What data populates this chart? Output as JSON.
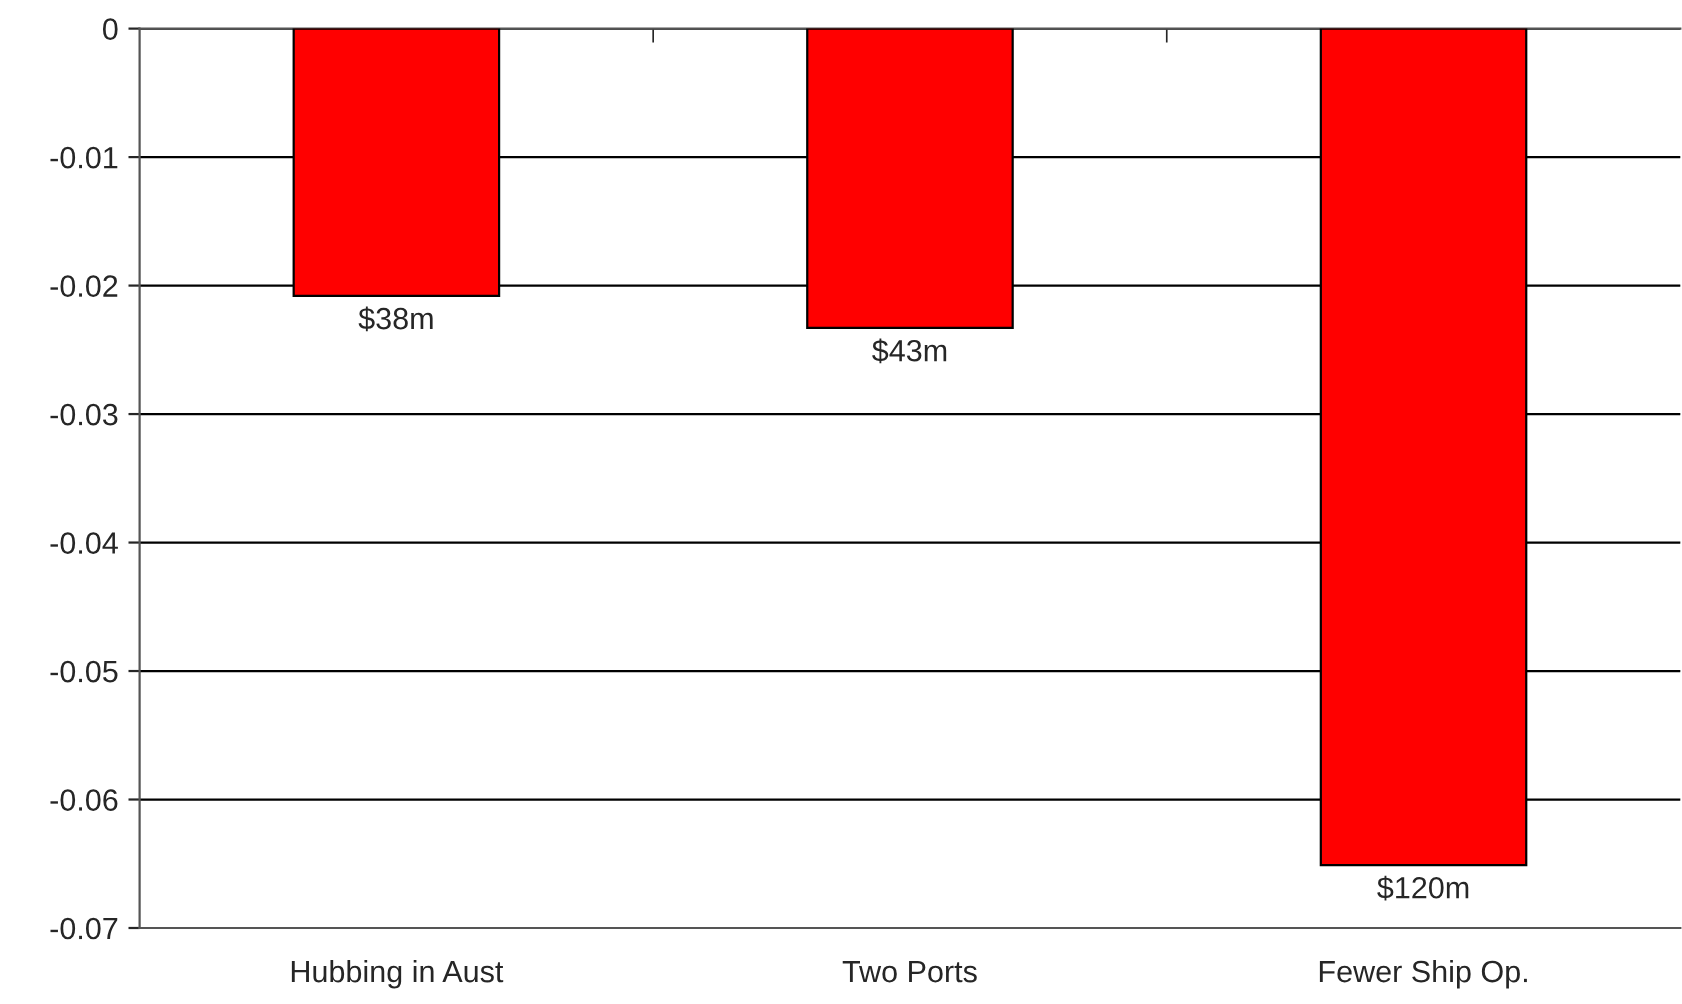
{
  "chart_data": {
    "type": "bar",
    "categories": [
      "Hubbing in Aust",
      "Two Ports",
      "Fewer Ship Op."
    ],
    "series": [
      {
        "color": "#ff0000",
        "values": [
          -0.0208,
          -0.0233,
          -0.0651
        ]
      }
    ],
    "annotations": [
      {
        "text": "$38m",
        "x": "Hubbing in Aust",
        "y": -0.0208
      },
      {
        "text": "$43m",
        "x": "Two Ports",
        "y": -0.0233
      },
      {
        "text": "$120m",
        "x": "Fewer Ship Op.",
        "y": -0.0651
      }
    ],
    "ylim": [
      -0.07,
      0
    ],
    "yticks": [
      {
        "value": -0.07,
        "label": "-0.07"
      },
      {
        "value": -0.06,
        "label": "-0.06"
      },
      {
        "value": -0.05,
        "label": "-0.05"
      },
      {
        "value": -0.04,
        "label": "-0.04"
      },
      {
        "value": -0.03,
        "label": "-0.03"
      },
      {
        "value": -0.02,
        "label": "-0.02"
      },
      {
        "value": -0.01,
        "label": "-0.01"
      },
      {
        "value": 0,
        "label": "0"
      }
    ],
    "grid": "y",
    "legend": false
  }
}
